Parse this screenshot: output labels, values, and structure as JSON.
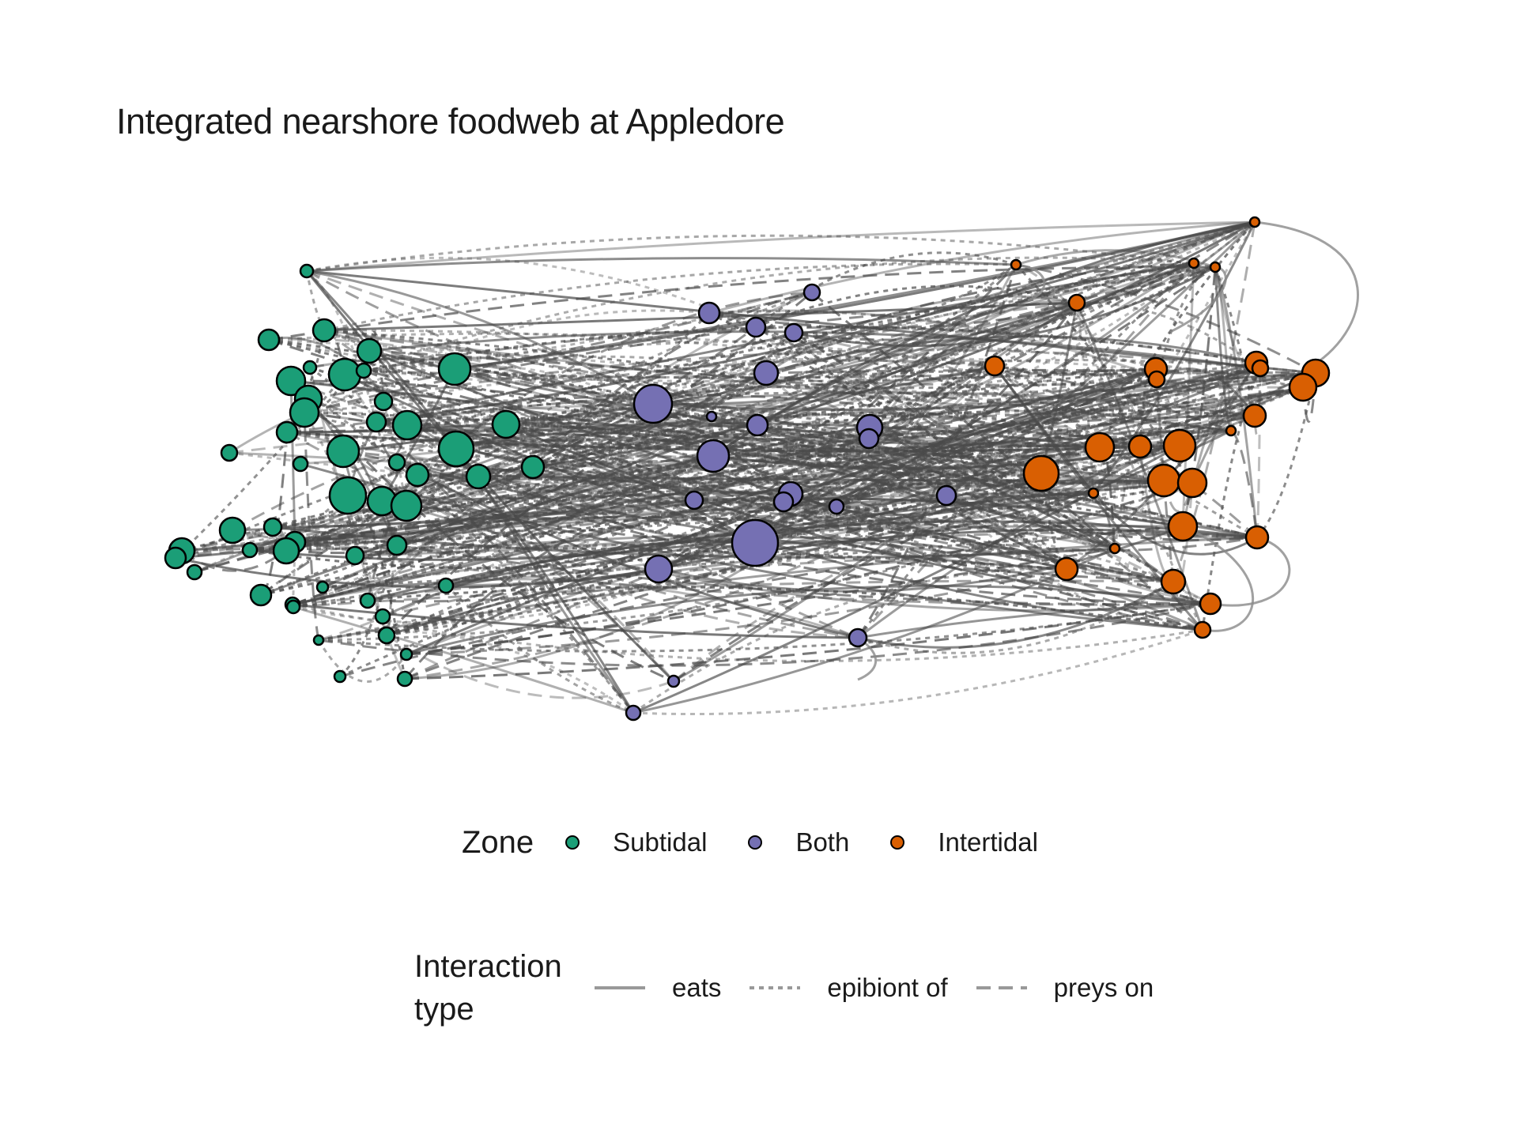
{
  "title": "Integrated nearshore foodweb at Appledore",
  "colors": {
    "subtidal": "#1b9e77",
    "both": "#7570b3",
    "intertidal": "#d95f02",
    "edge": "#4a4a4a",
    "node_outline": "#000000"
  },
  "legend_zone": {
    "title": "Zone",
    "items": [
      {
        "label": "Subtidal",
        "color": "#1b9e77"
      },
      {
        "label": "Both",
        "color": "#7570b3"
      },
      {
        "label": "Intertidal",
        "color": "#d95f02"
      }
    ]
  },
  "legend_interaction": {
    "title": "Interaction\ntype",
    "items": [
      {
        "label": "eats",
        "dash": "solid"
      },
      {
        "label": "epibiont of",
        "dash": "dotted"
      },
      {
        "label": "preys on",
        "dash": "dashed"
      }
    ]
  }
}
